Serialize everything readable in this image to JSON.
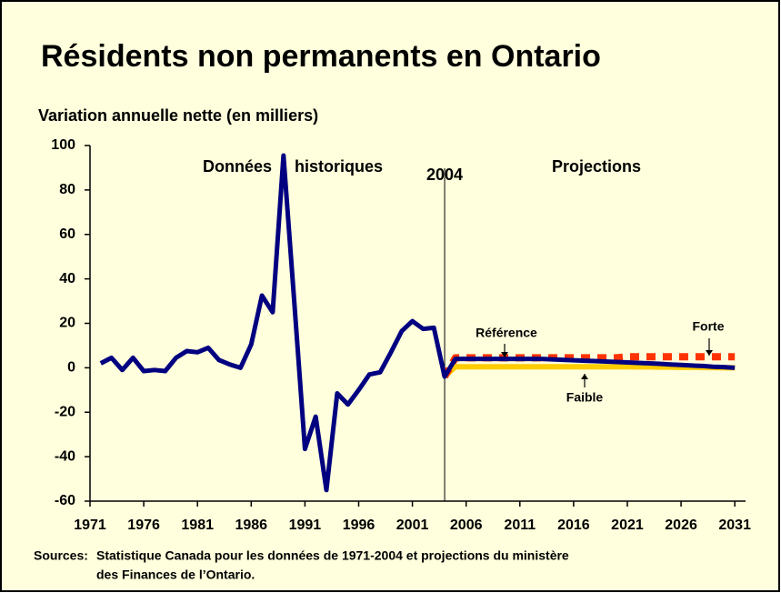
{
  "chart_data": {
    "type": "line",
    "title": "Résidents non permanents en Ontario",
    "subtitle": "Variation annuelle nette (en milliers)",
    "x": [
      1972,
      1973,
      1974,
      1975,
      1976,
      1977,
      1978,
      1979,
      1980,
      1981,
      1982,
      1983,
      1984,
      1985,
      1986,
      1987,
      1988,
      1989,
      1990,
      1991,
      1992,
      1993,
      1994,
      1995,
      1996,
      1997,
      1998,
      1999,
      2000,
      2001,
      2002,
      2003,
      2004,
      2005,
      2006,
      2007,
      2008,
      2009,
      2010,
      2011,
      2012,
      2013,
      2014,
      2015,
      2016,
      2017,
      2018,
      2019,
      2020,
      2021,
      2022,
      2023,
      2024,
      2025,
      2026,
      2027,
      2028,
      2029,
      2030,
      2031
    ],
    "series": [
      {
        "name": "Référence",
        "color": "#000080",
        "values": [
          2,
          4.5,
          -1,
          4.5,
          -1.5,
          -1,
          -1.5,
          4.5,
          7.5,
          7,
          9,
          3.5,
          1.5,
          0,
          10.5,
          32.5,
          25,
          95.5,
          30,
          -36.5,
          -22,
          -55,
          -11.5,
          -16.5,
          -10,
          -3,
          -2,
          7,
          16.5,
          21,
          17.5,
          18,
          -4,
          4,
          4,
          4,
          4,
          4,
          4,
          4,
          4,
          4,
          3.8,
          3.6,
          3.4,
          3.2,
          3.0,
          2.8,
          2.6,
          2.4,
          2.2,
          2.0,
          1.8,
          1.5,
          1.3,
          1.0,
          0.8,
          0.5,
          0.3,
          0
        ]
      },
      {
        "name": "Forte",
        "color": "#ff3300",
        "values": [
          null,
          null,
          null,
          null,
          null,
          null,
          null,
          null,
          null,
          null,
          null,
          null,
          null,
          null,
          null,
          null,
          null,
          null,
          null,
          null,
          null,
          null,
          null,
          null,
          null,
          null,
          null,
          null,
          null,
          null,
          null,
          null,
          -4,
          4.5,
          4.5,
          4.5,
          4.5,
          4.5,
          4.5,
          4.5,
          4.5,
          4.5,
          4.5,
          4.5,
          4.5,
          4.5,
          4.5,
          4.5,
          4.5,
          5,
          5,
          5,
          5,
          5,
          5,
          5,
          5,
          5,
          5,
          5
        ]
      },
      {
        "name": "Faible",
        "color": "#ffcc00",
        "values": [
          null,
          null,
          null,
          null,
          null,
          null,
          null,
          null,
          null,
          null,
          null,
          null,
          null,
          null,
          null,
          null,
          null,
          null,
          null,
          null,
          null,
          null,
          null,
          null,
          null,
          null,
          null,
          null,
          null,
          null,
          null,
          null,
          -4,
          0.5,
          0.5,
          0.5,
          0.5,
          0.5,
          0.5,
          0.5,
          0.5,
          0.5,
          0.5,
          0.5,
          0.5,
          0.5,
          0.5,
          0.5,
          0.5,
          0.5,
          0.4,
          0.4,
          0.3,
          0.3,
          0.2,
          0.2,
          0.1,
          0.1,
          0,
          0
        ]
      }
    ],
    "xlim": [
      1971,
      2032
    ],
    "xticks": [
      1971,
      1976,
      1981,
      1986,
      1991,
      1996,
      2001,
      2006,
      2011,
      2016,
      2021,
      2026,
      2031
    ],
    "ylim": [
      -60,
      100
    ],
    "yticks": [
      100,
      80,
      60,
      40,
      20,
      0,
      -20,
      -40,
      -60
    ],
    "vline": 2004,
    "annotations": [
      "Données historiques",
      "Projections"
    ],
    "source": [
      "Sources:",
      "Statistique Canada pour les données de 1971-2004 et projections du ministère",
      "des Finances de l’Ontario."
    ]
  }
}
